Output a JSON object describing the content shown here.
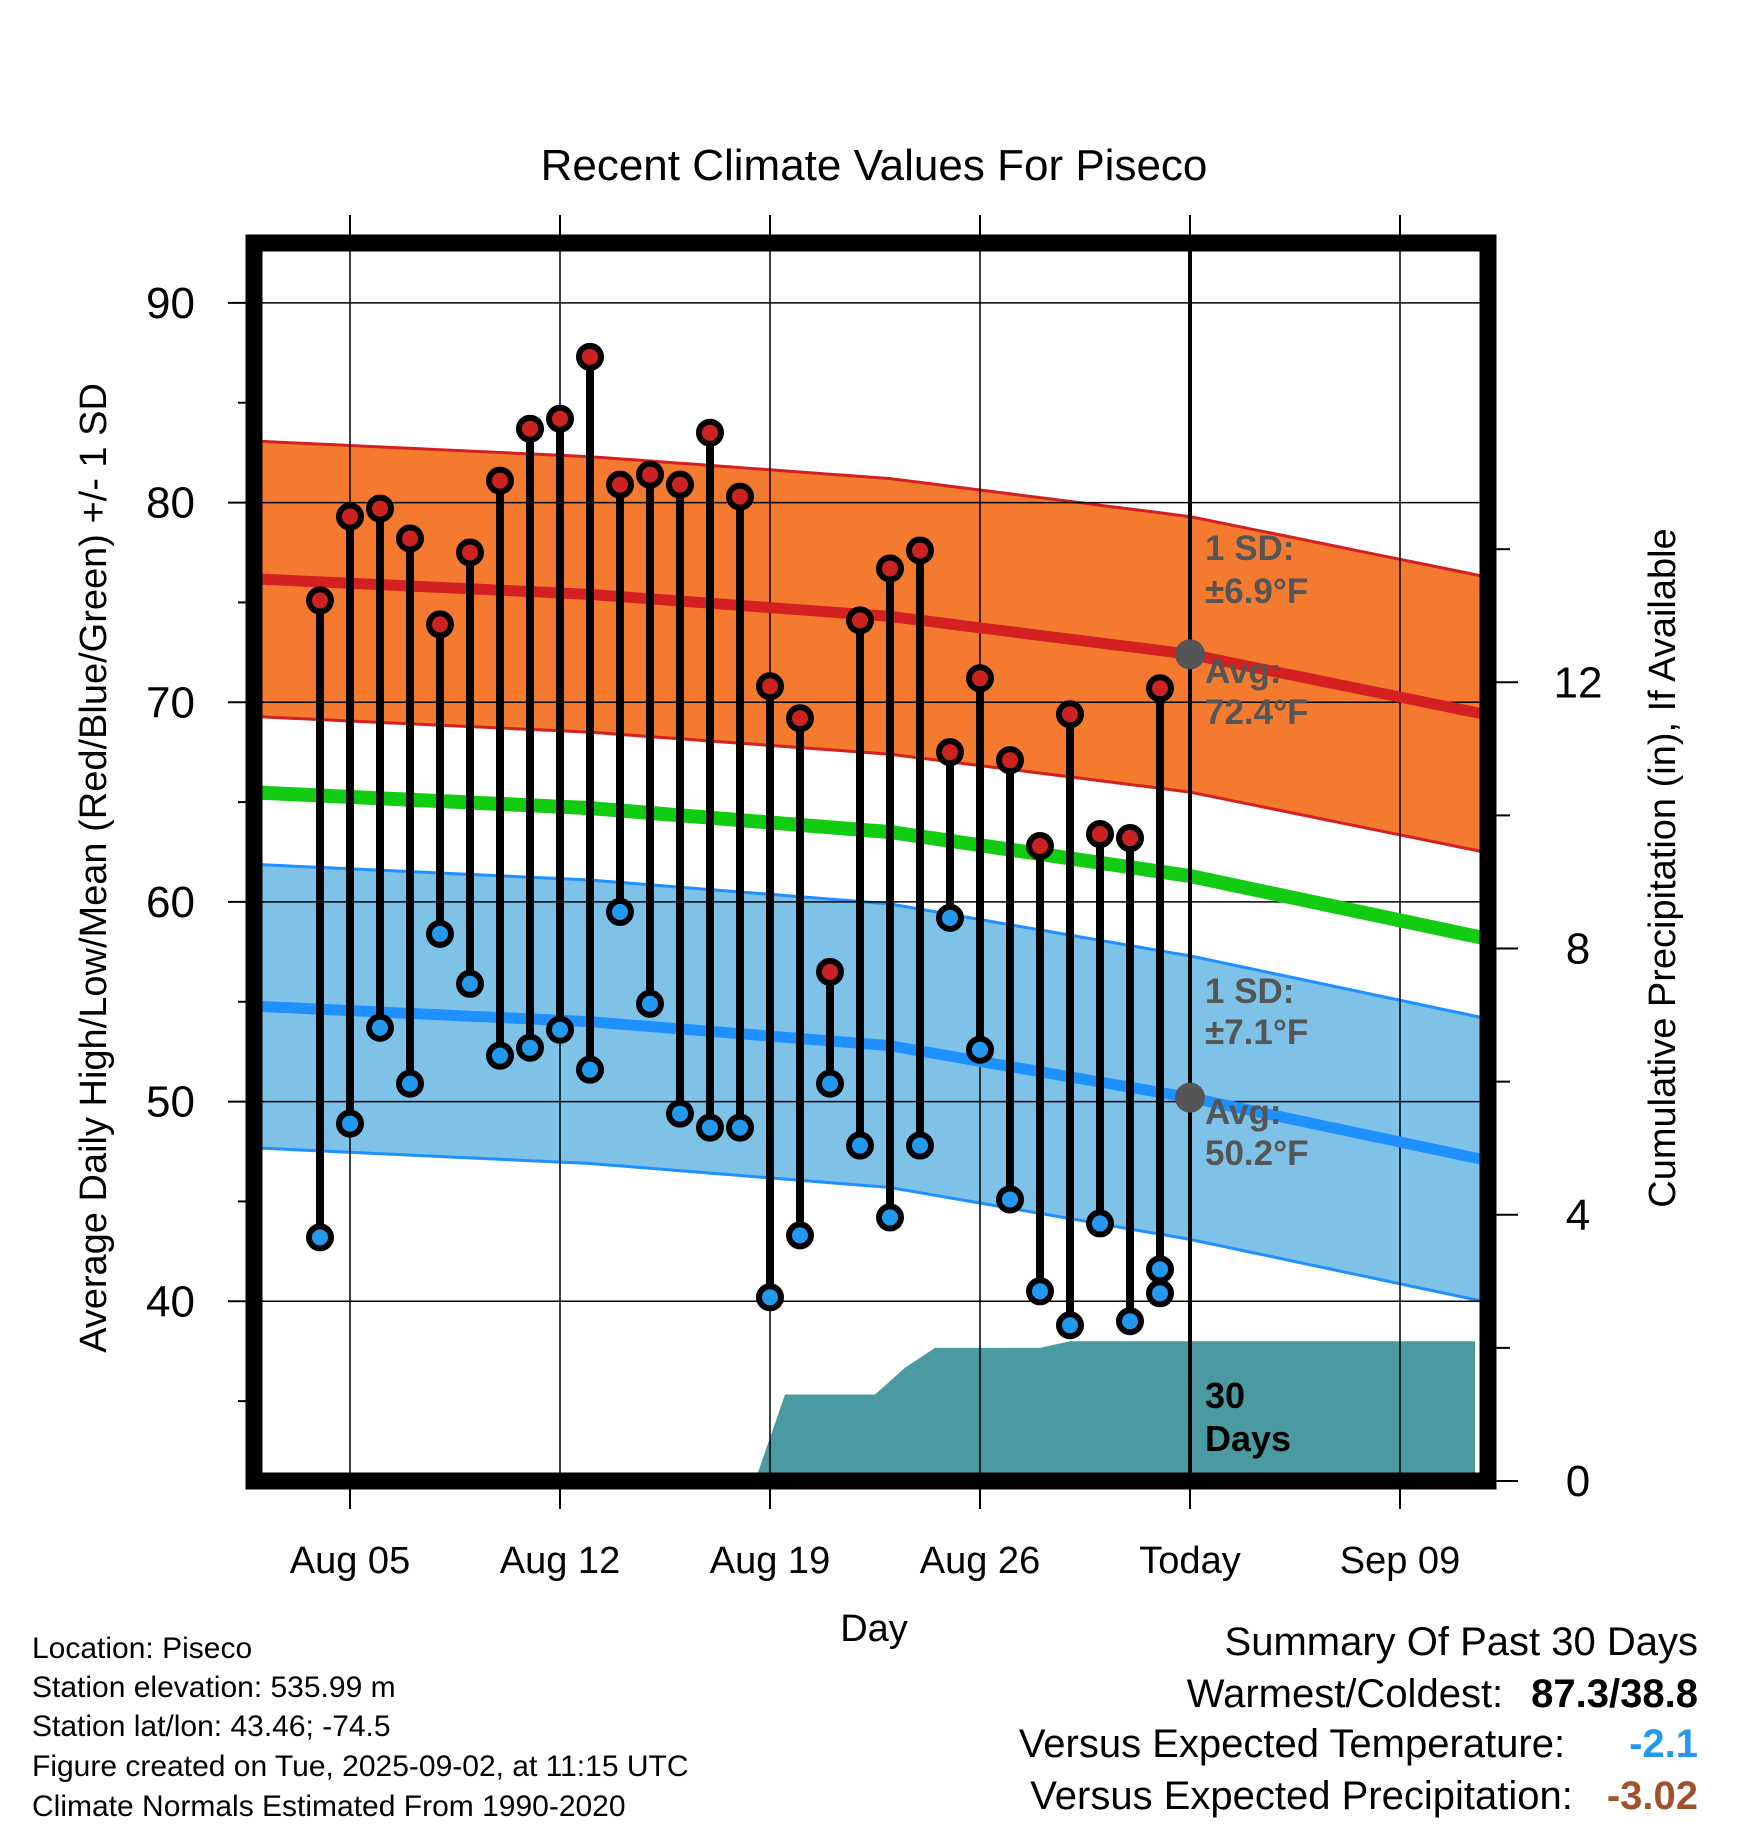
{
  "chart_data": {
    "type": "line",
    "title": "Recent Climate Values For Piseco",
    "xlabel": "Day",
    "ylabel": "Average Daily High/Low/Mean (Red/Blue/Green) +/- 1 SD",
    "y2label": "Cumulative Precipitation (in), If Available",
    "ylim": [
      31,
      93
    ],
    "y2lim": [
      0,
      18.6
    ],
    "x_ticks": [
      "Aug 05",
      "Aug 12",
      "Aug 19",
      "Aug 26",
      "Today",
      "Sep 09"
    ],
    "y_ticks": [
      40,
      50,
      60,
      70,
      80,
      90
    ],
    "y2_ticks": [
      0,
      4,
      8,
      12
    ],
    "grid": true,
    "today_label": "Today",
    "period_label": [
      "30",
      "Days"
    ],
    "normal_high": {
      "sd_label": "1 SD:",
      "sd_value": "±6.9°F",
      "avg_label": "Avg:",
      "avg_value": "72.4°F",
      "avg": 72.4,
      "sd": 6.9
    },
    "normal_low": {
      "sd_label": "1 SD:",
      "sd_value": "±7.1°F",
      "avg_label": "Avg:",
      "avg_value": "50.2°F",
      "avg": 50.2,
      "sd": 7.1
    },
    "normals_days": [
      -30,
      -20,
      -10,
      0,
      8.5
    ],
    "normal_high_curve": [
      76.1,
      75.4,
      74.3,
      72.4,
      69.8
    ],
    "normal_low_curve": [
      54.7,
      54.0,
      52.8,
      50.2,
      47.5
    ],
    "normal_mean_curve": [
      65.4,
      64.7,
      63.5,
      61.3,
      58.6
    ],
    "days": [
      -29,
      -28,
      -27,
      -26,
      -25,
      -24,
      -23,
      -22,
      -21,
      -20,
      -19,
      -18,
      -17,
      -16,
      -15,
      -14,
      -13,
      -12,
      -11,
      -10,
      -9,
      -8,
      -7,
      -6,
      -5,
      -4,
      -3,
      -2,
      -1
    ],
    "series": [
      {
        "name": "High",
        "color": "#cc2222",
        "values": [
          75.1,
          79.3,
          79.7,
          78.2,
          73.9,
          77.5,
          81.1,
          83.7,
          84.2,
          87.3,
          80.9,
          81.4,
          80.9,
          83.5,
          80.3,
          70.8,
          69.2,
          56.5,
          74.1,
          76.7,
          77.6,
          67.5,
          71.2,
          67.1,
          62.8,
          69.4,
          63.4,
          63.2,
          70.7
        ]
      },
      {
        "name": "Low",
        "color": "#2299ee",
        "values": [
          43.2,
          48.9,
          53.7,
          50.9,
          58.4,
          55.9,
          52.3,
          52.7,
          53.6,
          51.6,
          59.5,
          54.9,
          49.4,
          48.7,
          48.7,
          40.2,
          43.3,
          50.9,
          47.8,
          44.2,
          47.8,
          59.2,
          52.6,
          45.1,
          40.5,
          38.8,
          43.9,
          39.0,
          40.4
        ]
      }
    ],
    "extra_low": {
      "day": -1,
      "value": 41.6
    },
    "precip_days": [
      -30,
      -14.5,
      -13.5,
      -10.5,
      -9.5,
      -8.5,
      -6.2,
      -5,
      -4,
      -3,
      -2,
      0,
      9.5
    ],
    "precip": [
      0,
      0,
      1.3,
      1.3,
      1.7,
      2.0,
      2.0,
      2.0,
      2.1,
      2.1,
      2.1,
      2.1,
      2.1
    ],
    "colors": {
      "high_band": "#f47a30",
      "high_line": "#d42020",
      "low_band": "#7fc2e8",
      "low_line": "#1e90ff",
      "mean_line": "#11cc11",
      "precip": "#4a9aa2"
    }
  },
  "footer": {
    "location": "Location: Piseco",
    "elevation": "Station elevation: 535.99 m",
    "latlon": "Station lat/lon: 43.46; -74.5",
    "created": "Figure created on Tue, 2025-09-02, at 11:15 UTC",
    "normals": "Climate Normals Estimated From 1990-2020"
  },
  "summary": {
    "title": "Summary Of Past 30 Days",
    "warmest_label": "Warmest/Coldest:",
    "warmest_value": "87.3/38.8",
    "temp_label": "Versus Expected Temperature:",
    "temp_value": "-2.1",
    "temp_color": "#2299ee",
    "precip_label": "Versus Expected Precipitation:",
    "precip_value": "-3.02",
    "precip_color": "#a0522d"
  }
}
